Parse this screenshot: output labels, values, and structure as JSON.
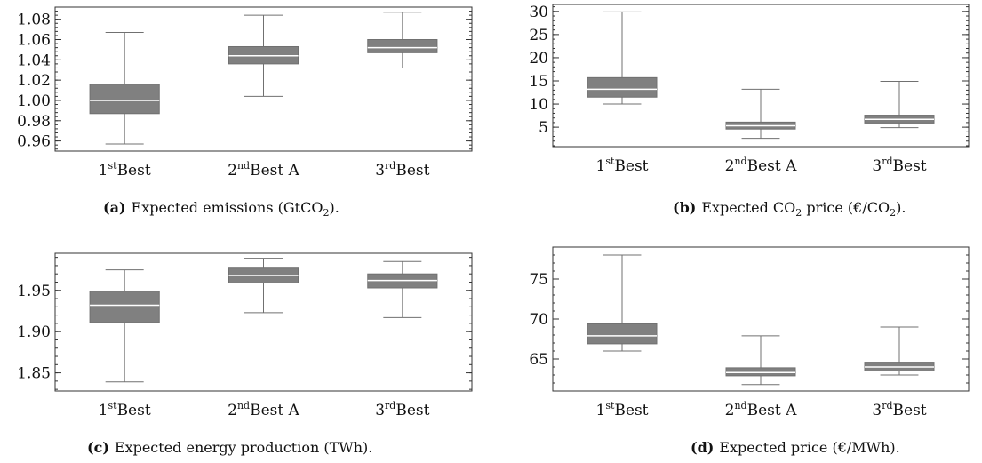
{
  "colors": {
    "box": "#808080",
    "median": "#ffffff",
    "whisker": "#707070",
    "axis": "#333333"
  },
  "chart_data": [
    {
      "type": "box",
      "caption_letter": "(a)",
      "caption_text": "Expected emissions (GtCO",
      "caption_sub": "2",
      "caption_after": ").",
      "ylim": [
        0.95,
        1.092
      ],
      "yticks": [
        0.96,
        0.98,
        1.0,
        1.02,
        1.04,
        1.06,
        1.08
      ],
      "ytick_labels": [
        "0.96",
        "0.98",
        "1.00",
        "1.02",
        "1.04",
        "1.06",
        "1.08"
      ],
      "categories": [
        {
          "ord": "1",
          "sup": "st",
          "name": "Best"
        },
        {
          "ord": "2",
          "sup": "nd",
          "name": "Best A"
        },
        {
          "ord": "3",
          "sup": "rd",
          "name": "Best"
        }
      ],
      "boxes": [
        {
          "min": 0.957,
          "q1": 0.987,
          "median": 1.0,
          "q3": 1.016,
          "max": 1.067
        },
        {
          "min": 1.004,
          "q1": 1.036,
          "median": 1.044,
          "q3": 1.053,
          "max": 1.084
        },
        {
          "min": 1.032,
          "q1": 1.047,
          "median": 1.052,
          "q3": 1.06,
          "max": 1.087
        }
      ]
    },
    {
      "type": "box",
      "caption_letter": "(b)",
      "caption_text": "Expected CO",
      "caption_sub": "2",
      "caption_after": " price (€/CO",
      "caption_sub2": "2",
      "caption_after2": ").",
      "ylim": [
        0.8,
        31.5
      ],
      "yticks": [
        5,
        10,
        15,
        20,
        25,
        30
      ],
      "ytick_labels": [
        "5",
        "10",
        "15",
        "20",
        "25",
        "30"
      ],
      "categories": [
        {
          "ord": "1",
          "sup": "st",
          "name": "Best"
        },
        {
          "ord": "2",
          "sup": "nd",
          "name": "Best A"
        },
        {
          "ord": "3",
          "sup": "rd",
          "name": "Best"
        }
      ],
      "boxes": [
        {
          "min": 10.0,
          "q1": 11.5,
          "median": 13.2,
          "q3": 15.7,
          "max": 29.9
        },
        {
          "min": 2.6,
          "q1": 4.6,
          "median": 5.3,
          "q3": 6.1,
          "max": 13.2
        },
        {
          "min": 4.9,
          "q1": 5.9,
          "median": 6.7,
          "q3": 7.6,
          "max": 14.9
        }
      ]
    },
    {
      "type": "box",
      "caption_letter": "(c)",
      "caption_text": "Expected energy production (TWh).",
      "ylim": [
        1.828,
        1.995
      ],
      "yticks": [
        1.85,
        1.9,
        1.95
      ],
      "ytick_labels": [
        "1.85",
        "1.90",
        "1.95"
      ],
      "categories": [
        {
          "ord": "1",
          "sup": "st",
          "name": "Best"
        },
        {
          "ord": "2",
          "sup": "nd",
          "name": "Best A"
        },
        {
          "ord": "3",
          "sup": "rd",
          "name": "Best"
        }
      ],
      "boxes": [
        {
          "min": 1.839,
          "q1": 1.911,
          "median": 1.932,
          "q3": 1.949,
          "max": 1.975
        },
        {
          "min": 1.923,
          "q1": 1.959,
          "median": 1.968,
          "q3": 1.977,
          "max": 1.989
        },
        {
          "min": 1.917,
          "q1": 1.953,
          "median": 1.962,
          "q3": 1.97,
          "max": 1.985
        }
      ]
    },
    {
      "type": "box",
      "caption_letter": "(d)",
      "caption_text": "Expected price (€/MWh).",
      "ylim": [
        61.0,
        79.0
      ],
      "yticks": [
        65,
        70,
        75
      ],
      "ytick_labels": [
        "65",
        "70",
        "75"
      ],
      "categories": [
        {
          "ord": "1",
          "sup": "st",
          "name": "Best"
        },
        {
          "ord": "2",
          "sup": "nd",
          "name": "Best A"
        },
        {
          "ord": "3",
          "sup": "rd",
          "name": "Best"
        }
      ],
      "boxes": [
        {
          "min": 66.0,
          "q1": 66.9,
          "median": 67.9,
          "q3": 69.4,
          "max": 78.0
        },
        {
          "min": 61.8,
          "q1": 62.9,
          "median": 63.3,
          "q3": 63.9,
          "max": 67.9
        },
        {
          "min": 63.0,
          "q1": 63.5,
          "median": 64.0,
          "q3": 64.6,
          "max": 69.0
        }
      ]
    }
  ]
}
